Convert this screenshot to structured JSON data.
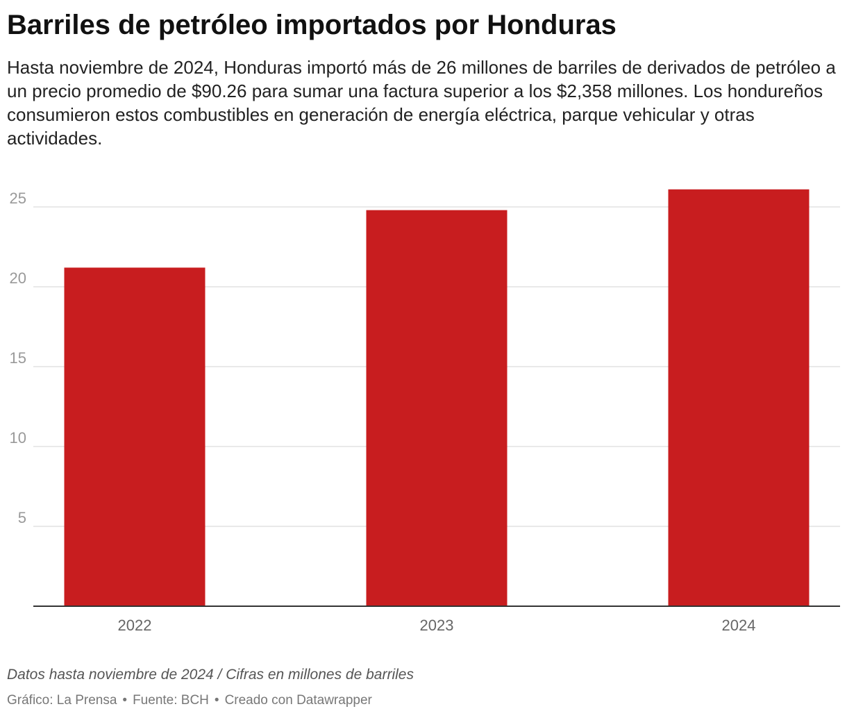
{
  "header": {
    "title": "Barriles de petróleo importados por Honduras",
    "description": "Hasta noviembre de 2024, Honduras importó más de 26 millones de barriles de derivados de petróleo a un precio promedio de $90.26 para sumar una factura superior a los $2,358 millones. Los hondureños consumieron estos combustibles en generación de energía eléctrica, parque vehicular y otras actividades."
  },
  "chart_data": {
    "type": "bar",
    "title": "Barriles de petróleo importados por Honduras",
    "categories": [
      "2022",
      "2023",
      "2024"
    ],
    "values": [
      21.2,
      24.8,
      26.1
    ],
    "ylim": [
      0,
      27
    ],
    "yticks": [
      5,
      10,
      15,
      20,
      25
    ],
    "grid": true,
    "bar_color": "#c81d1f",
    "xlabel": "",
    "ylabel": ""
  },
  "footer": {
    "notes": "Datos hasta noviembre de 2024 / Cifras en millones de barriles",
    "credit": "Gráfico: La Prensa",
    "source": "Fuente: BCH",
    "tool": "Creado con Datawrapper",
    "separator": "•"
  }
}
